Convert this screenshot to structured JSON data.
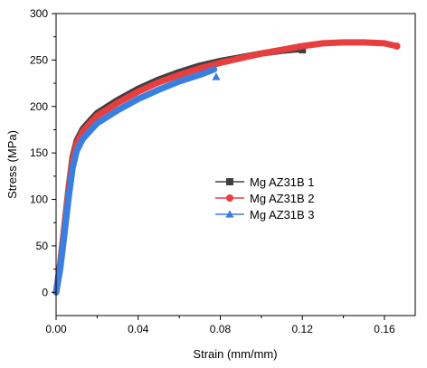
{
  "chart_data": {
    "type": "line",
    "xlabel": "Strain (mm/mm)",
    "ylabel": "Stress (MPa)",
    "xlim": [
      0.0,
      0.175
    ],
    "ylim": [
      -25,
      300
    ],
    "x_ticks": [
      0.0,
      0.04,
      0.08,
      0.12,
      0.16
    ],
    "x_tick_labels": [
      "0.00",
      "0.04",
      "0.08",
      "0.12",
      "0.16"
    ],
    "y_ticks": [
      0,
      50,
      100,
      150,
      200,
      250,
      300
    ],
    "y_tick_labels": [
      "0",
      "50",
      "100",
      "150",
      "200",
      "250",
      "300"
    ],
    "grid": false,
    "legend_position": "center-right",
    "series": [
      {
        "name": "Mg AZ31B 1",
        "color": "#404040",
        "marker": "square",
        "points": [
          [
            0.0,
            0
          ],
          [
            0.002,
            30
          ],
          [
            0.004,
            70
          ],
          [
            0.006,
            110
          ],
          [
            0.008,
            145
          ],
          [
            0.01,
            163
          ],
          [
            0.013,
            176
          ],
          [
            0.017,
            186
          ],
          [
            0.02,
            193
          ],
          [
            0.03,
            207
          ],
          [
            0.04,
            219
          ],
          [
            0.05,
            229
          ],
          [
            0.06,
            237
          ],
          [
            0.07,
            244
          ],
          [
            0.08,
            249
          ],
          [
            0.09,
            253
          ],
          [
            0.1,
            257
          ],
          [
            0.11,
            260
          ],
          [
            0.12,
            262
          ]
        ],
        "end_point": [
          0.12,
          261
        ]
      },
      {
        "name": "Mg AZ31B 2",
        "color": "#e83e3e",
        "marker": "circle",
        "points": [
          [
            0.0,
            0
          ],
          [
            0.002,
            28
          ],
          [
            0.004,
            68
          ],
          [
            0.006,
            108
          ],
          [
            0.008,
            142
          ],
          [
            0.01,
            160
          ],
          [
            0.013,
            173
          ],
          [
            0.017,
            183
          ],
          [
            0.02,
            190
          ],
          [
            0.03,
            204
          ],
          [
            0.04,
            216
          ],
          [
            0.05,
            226
          ],
          [
            0.06,
            234
          ],
          [
            0.07,
            241
          ],
          [
            0.08,
            247
          ],
          [
            0.09,
            252
          ],
          [
            0.1,
            257
          ],
          [
            0.11,
            261
          ],
          [
            0.12,
            265
          ],
          [
            0.13,
            268
          ],
          [
            0.14,
            269
          ],
          [
            0.15,
            269
          ],
          [
            0.16,
            268
          ],
          [
            0.166,
            265
          ]
        ],
        "end_point": [
          0.166,
          265
        ]
      },
      {
        "name": "Mg AZ31B 3",
        "color": "#3a7fe0",
        "marker": "triangle",
        "points": [
          [
            0.0,
            0
          ],
          [
            0.002,
            25
          ],
          [
            0.004,
            62
          ],
          [
            0.006,
            100
          ],
          [
            0.008,
            133
          ],
          [
            0.01,
            152
          ],
          [
            0.013,
            165
          ],
          [
            0.017,
            175
          ],
          [
            0.02,
            182
          ],
          [
            0.03,
            196
          ],
          [
            0.04,
            208
          ],
          [
            0.05,
            218
          ],
          [
            0.06,
            227
          ],
          [
            0.07,
            234
          ],
          [
            0.077,
            240
          ]
        ],
        "end_point": [
          0.078,
          232
        ]
      }
    ]
  }
}
